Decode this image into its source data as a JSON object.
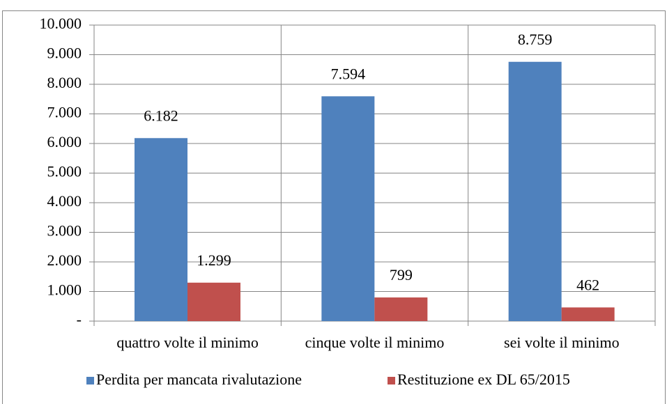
{
  "chart_data": {
    "type": "bar",
    "categories": [
      "quattro volte il minimo",
      "cinque volte il minimo",
      "sei volte il minimo"
    ],
    "series": [
      {
        "name": "Perdita per mancata rivalutazione",
        "color": "#4f81bd",
        "values": [
          6182,
          7594,
          8759
        ],
        "value_labels": [
          "6.182",
          "7.594",
          "8.759"
        ]
      },
      {
        "name": "Restituzione ex DL 65/2015",
        "color": "#c0504d",
        "values": [
          1299,
          799,
          462
        ],
        "value_labels": [
          "1.299",
          "799",
          "462"
        ]
      }
    ],
    "ylim": [
      0,
      10000
    ],
    "yticks": [
      {
        "value": 0,
        "label": "-"
      },
      {
        "value": 1000,
        "label": "1.000"
      },
      {
        "value": 2000,
        "label": "2.000"
      },
      {
        "value": 3000,
        "label": "3.000"
      },
      {
        "value": 4000,
        "label": "4.000"
      },
      {
        "value": 5000,
        "label": "5.000"
      },
      {
        "value": 6000,
        "label": "6.000"
      },
      {
        "value": 7000,
        "label": "7.000"
      },
      {
        "value": 8000,
        "label": "8.000"
      },
      {
        "value": 9000,
        "label": "9.000"
      },
      {
        "value": 10000,
        "label": "10.000"
      }
    ],
    "grid": true,
    "legend": "bottom"
  }
}
